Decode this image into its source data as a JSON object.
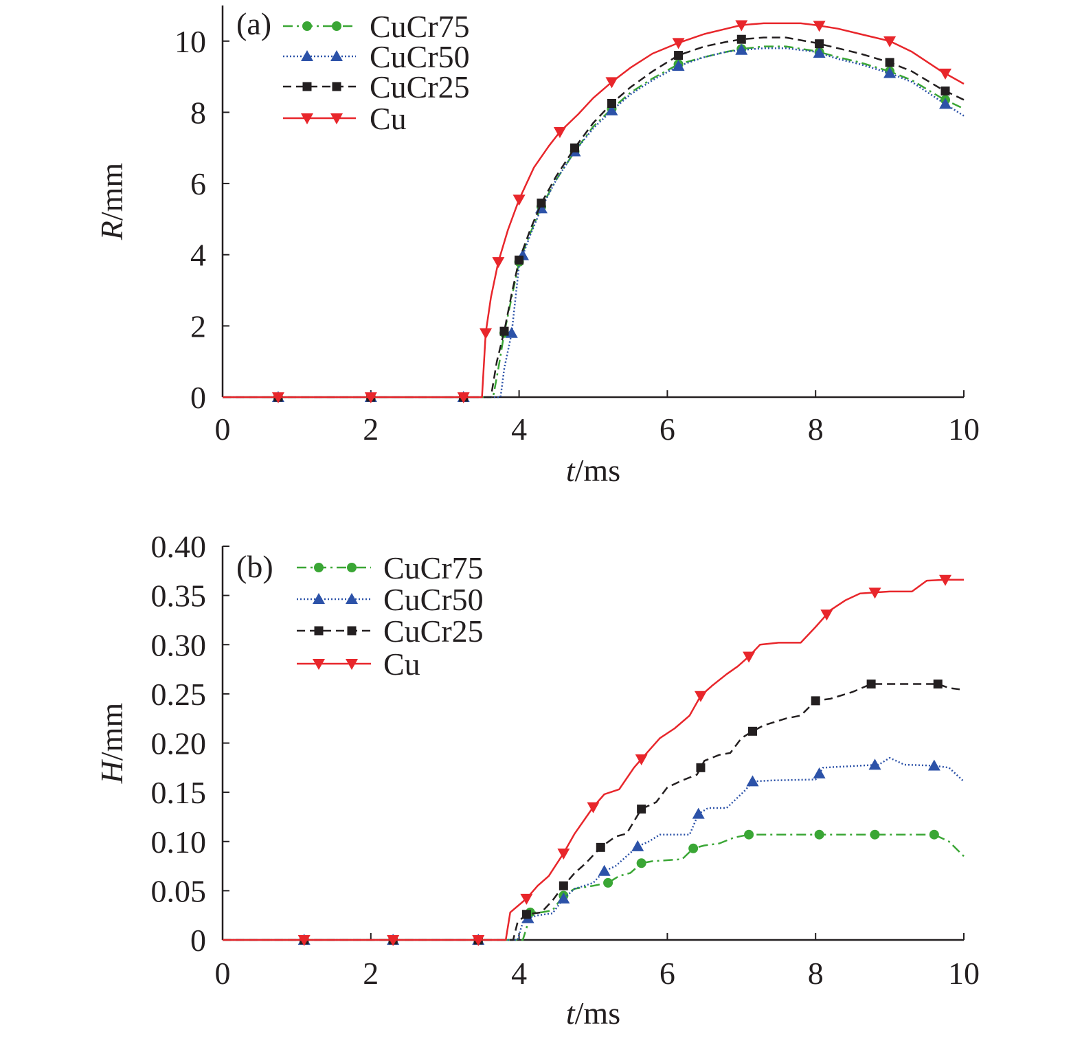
{
  "chart_data": [
    {
      "type": "line",
      "panel_label": "(a)",
      "xlabel": "t/ms",
      "ylabel": "R/mm",
      "xlim": [
        0,
        10
      ],
      "ylim": [
        0,
        11
      ],
      "xticks": [
        "0",
        "2",
        "4",
        "6",
        "8",
        "10"
      ],
      "yticks": [
        "0",
        "2",
        "4",
        "6",
        "8",
        "10"
      ],
      "xtick_values": [
        0,
        2,
        4,
        6,
        8,
        10
      ],
      "ytick_values": [
        0,
        2,
        4,
        6,
        8,
        10
      ],
      "legend_position": "top-left",
      "grid": false,
      "series": [
        {
          "name": "CuCr75",
          "color": "#3aa635",
          "dash": "dashdot",
          "marker": "circle",
          "x": [
            0,
            0.75,
            2.0,
            3.25,
            3.65,
            3.72,
            3.8,
            3.9,
            4.0,
            4.15,
            4.3,
            4.5,
            4.75,
            5.0,
            5.25,
            5.5,
            5.8,
            6.15,
            6.5,
            6.8,
            7.0,
            7.3,
            7.6,
            8.0,
            8.3,
            8.6,
            9.0,
            9.3,
            9.7,
            10.0
          ],
          "y": [
            0,
            0,
            0,
            0,
            0,
            0.8,
            1.8,
            2.8,
            3.8,
            4.6,
            5.35,
            6.1,
            6.9,
            7.6,
            8.1,
            8.55,
            8.95,
            9.35,
            9.55,
            9.7,
            9.78,
            9.85,
            9.85,
            9.72,
            9.55,
            9.4,
            9.15,
            8.9,
            8.4,
            8.1
          ],
          "marker_x": [
            0.75,
            2.0,
            3.25,
            3.8,
            4.0,
            4.3,
            4.75,
            5.25,
            6.15,
            7.0,
            8.05,
            9.0,
            9.75
          ]
        },
        {
          "name": "CuCr50",
          "color": "#2c52a8",
          "dash": "dotted",
          "marker": "triangle",
          "x": [
            0,
            0.75,
            2.0,
            3.25,
            3.75,
            3.8,
            3.9,
            4.0,
            4.15,
            4.3,
            4.5,
            4.75,
            5.0,
            5.25,
            5.5,
            5.8,
            6.15,
            6.5,
            6.8,
            7.0,
            7.3,
            7.6,
            8.0,
            8.3,
            8.6,
            9.0,
            9.3,
            9.7,
            10.0
          ],
          "y": [
            0,
            0,
            0,
            0,
            0,
            0.8,
            1.8,
            3.7,
            4.55,
            5.3,
            6.1,
            6.9,
            7.55,
            8.05,
            8.5,
            8.9,
            9.3,
            9.55,
            9.7,
            9.75,
            9.8,
            9.8,
            9.7,
            9.5,
            9.35,
            9.1,
            8.85,
            8.3,
            7.9
          ],
          "marker_x": [
            0.75,
            2.0,
            3.25,
            3.9,
            4.05,
            4.3,
            4.75,
            5.25,
            6.15,
            7.0,
            8.05,
            9.0,
            9.75
          ]
        },
        {
          "name": "CuCr25",
          "color": "#231f20",
          "dash": "dashed",
          "marker": "square",
          "x": [
            0,
            0.75,
            2.0,
            3.25,
            3.62,
            3.7,
            3.8,
            3.9,
            4.0,
            4.15,
            4.3,
            4.5,
            4.75,
            5.0,
            5.25,
            5.5,
            5.8,
            6.15,
            6.5,
            6.8,
            7.0,
            7.3,
            7.6,
            8.0,
            8.3,
            8.6,
            9.0,
            9.3,
            9.7,
            10.0
          ],
          "y": [
            0,
            0,
            0,
            0,
            0,
            1.0,
            1.85,
            2.9,
            3.85,
            4.7,
            5.45,
            6.2,
            7.0,
            7.7,
            8.25,
            8.7,
            9.15,
            9.6,
            9.85,
            9.98,
            10.05,
            10.1,
            10.1,
            9.95,
            9.8,
            9.65,
            9.4,
            9.15,
            8.65,
            8.35
          ],
          "marker_x": [
            0.75,
            2.0,
            3.25,
            3.8,
            4.0,
            4.3,
            4.75,
            5.25,
            6.15,
            7.0,
            8.05,
            9.0,
            9.75
          ]
        },
        {
          "name": "Cu",
          "color": "#e8262b",
          "dash": "solid",
          "marker": "triangle-down",
          "x": [
            0,
            0.75,
            2.0,
            3.25,
            3.5,
            3.55,
            3.62,
            3.72,
            3.85,
            4.0,
            4.2,
            4.4,
            4.55,
            4.8,
            5.0,
            5.25,
            5.5,
            5.8,
            6.15,
            6.5,
            6.8,
            7.0,
            7.3,
            7.6,
            7.8,
            8.0,
            8.3,
            8.6,
            9.0,
            9.3,
            9.7,
            10.0
          ],
          "y": [
            0,
            0,
            0,
            0,
            0,
            1.8,
            2.8,
            3.8,
            4.7,
            5.55,
            6.45,
            7.05,
            7.45,
            7.95,
            8.4,
            8.85,
            9.25,
            9.65,
            9.95,
            10.2,
            10.35,
            10.45,
            10.5,
            10.5,
            10.5,
            10.45,
            10.35,
            10.2,
            10.0,
            9.7,
            9.15,
            8.8
          ],
          "marker_x": [
            0.75,
            2.0,
            3.25,
            3.55,
            3.72,
            4.0,
            4.55,
            5.25,
            6.15,
            7.0,
            8.05,
            9.0,
            9.75
          ]
        }
      ]
    },
    {
      "type": "line",
      "panel_label": "(b)",
      "xlabel": "t/ms",
      "ylabel": "H/mm",
      "xlim": [
        0,
        10
      ],
      "ylim": [
        0,
        0.4
      ],
      "xticks": [
        "0",
        "2",
        "4",
        "6",
        "8",
        "10"
      ],
      "yticks": [
        "0",
        "0.05",
        "0.10",
        "0.15",
        "0.20",
        "0.25",
        "0.30",
        "0.35",
        "0.40"
      ],
      "xtick_values": [
        0,
        2,
        4,
        6,
        8,
        10
      ],
      "ytick_values": [
        0,
        0.05,
        0.1,
        0.15,
        0.2,
        0.25,
        0.3,
        0.35,
        0.4
      ],
      "legend_position": "top-left",
      "grid": false,
      "series": [
        {
          "name": "CuCr75",
          "color": "#3aa635",
          "dash": "dashdot",
          "marker": "circle",
          "x": [
            0,
            1.1,
            2.3,
            3.45,
            4.05,
            4.1,
            4.15,
            4.3,
            4.45,
            4.6,
            4.75,
            5.0,
            5.2,
            5.35,
            5.5,
            5.65,
            5.8,
            6.2,
            6.35,
            6.5,
            6.7,
            6.9,
            7.1,
            7.5,
            8.0,
            8.8,
            9.6,
            9.8,
            10.0
          ],
          "y": [
            0,
            0,
            0,
            0,
            0,
            0.012,
            0.028,
            0.028,
            0.03,
            0.045,
            0.052,
            0.055,
            0.058,
            0.065,
            0.068,
            0.078,
            0.08,
            0.082,
            0.093,
            0.096,
            0.098,
            0.104,
            0.107,
            0.107,
            0.107,
            0.107,
            0.107,
            0.1,
            0.085
          ],
          "marker_x": [
            1.1,
            2.3,
            3.45,
            4.15,
            4.6,
            5.2,
            5.65,
            6.35,
            7.1,
            8.05,
            8.8,
            9.6
          ]
        },
        {
          "name": "CuCr50",
          "color": "#2c52a8",
          "dash": "dotted",
          "marker": "triangle",
          "x": [
            0,
            1.1,
            2.3,
            3.45,
            3.98,
            4.05,
            4.12,
            4.25,
            4.45,
            4.6,
            4.75,
            5.0,
            5.15,
            5.3,
            5.45,
            5.6,
            5.75,
            5.9,
            6.3,
            6.42,
            6.55,
            6.8,
            7.05,
            7.15,
            7.4,
            8.0,
            8.1,
            8.6,
            8.85,
            9.0,
            9.2,
            9.6,
            9.8,
            10.0
          ],
          "y": [
            0,
            0,
            0,
            0,
            0,
            0.018,
            0.022,
            0.025,
            0.027,
            0.042,
            0.052,
            0.058,
            0.07,
            0.075,
            0.085,
            0.095,
            0.1,
            0.107,
            0.107,
            0.128,
            0.134,
            0.134,
            0.152,
            0.161,
            0.162,
            0.163,
            0.175,
            0.177,
            0.178,
            0.185,
            0.178,
            0.177,
            0.175,
            0.161
          ],
          "marker_x": [
            1.1,
            2.3,
            3.45,
            4.12,
            4.6,
            5.15,
            5.6,
            6.42,
            7.15,
            8.05,
            8.8,
            9.6
          ]
        },
        {
          "name": "CuCr25",
          "color": "#231f20",
          "dash": "dashed",
          "marker": "square",
          "x": [
            0,
            1.1,
            2.3,
            3.45,
            3.92,
            3.98,
            4.1,
            4.3,
            4.45,
            4.6,
            4.75,
            4.9,
            5.1,
            5.3,
            5.45,
            5.65,
            5.85,
            6.0,
            6.2,
            6.4,
            6.5,
            6.7,
            6.85,
            7.0,
            7.15,
            7.3,
            7.6,
            7.8,
            8.0,
            8.2,
            8.5,
            8.75,
            9.0,
            9.4,
            9.65,
            9.8,
            10.0
          ],
          "y": [
            0,
            0,
            0,
            0,
            0,
            0.018,
            0.026,
            0.028,
            0.04,
            0.055,
            0.068,
            0.078,
            0.094,
            0.105,
            0.108,
            0.133,
            0.14,
            0.155,
            0.162,
            0.168,
            0.182,
            0.188,
            0.19,
            0.205,
            0.212,
            0.218,
            0.225,
            0.228,
            0.243,
            0.245,
            0.252,
            0.26,
            0.26,
            0.26,
            0.26,
            0.256,
            0.254
          ],
          "marker_x": [
            1.1,
            2.3,
            3.45,
            4.1,
            4.6,
            5.1,
            5.65,
            6.45,
            7.15,
            8.0,
            8.75,
            9.65
          ]
        },
        {
          "name": "Cu",
          "color": "#e8262b",
          "dash": "solid",
          "marker": "triangle-down",
          "x": [
            0,
            1.1,
            2.3,
            3.45,
            3.82,
            3.88,
            4.1,
            4.25,
            4.4,
            4.6,
            4.75,
            5.0,
            5.15,
            5.35,
            5.55,
            5.7,
            5.9,
            6.1,
            6.3,
            6.45,
            6.6,
            6.8,
            6.95,
            7.1,
            7.25,
            7.5,
            7.8,
            8.0,
            8.2,
            8.4,
            8.6,
            8.8,
            9.0,
            9.3,
            9.5,
            9.75,
            10.0
          ],
          "y": [
            0,
            0,
            0,
            0,
            0,
            0.028,
            0.042,
            0.055,
            0.065,
            0.088,
            0.108,
            0.135,
            0.148,
            0.153,
            0.175,
            0.188,
            0.205,
            0.215,
            0.228,
            0.248,
            0.258,
            0.27,
            0.278,
            0.288,
            0.3,
            0.302,
            0.302,
            0.318,
            0.335,
            0.345,
            0.352,
            0.353,
            0.354,
            0.354,
            0.365,
            0.366,
            0.366
          ],
          "marker_x": [
            1.1,
            2.3,
            3.45,
            4.1,
            4.6,
            5.0,
            5.65,
            6.45,
            7.1,
            8.15,
            8.8,
            9.75
          ]
        }
      ]
    }
  ]
}
